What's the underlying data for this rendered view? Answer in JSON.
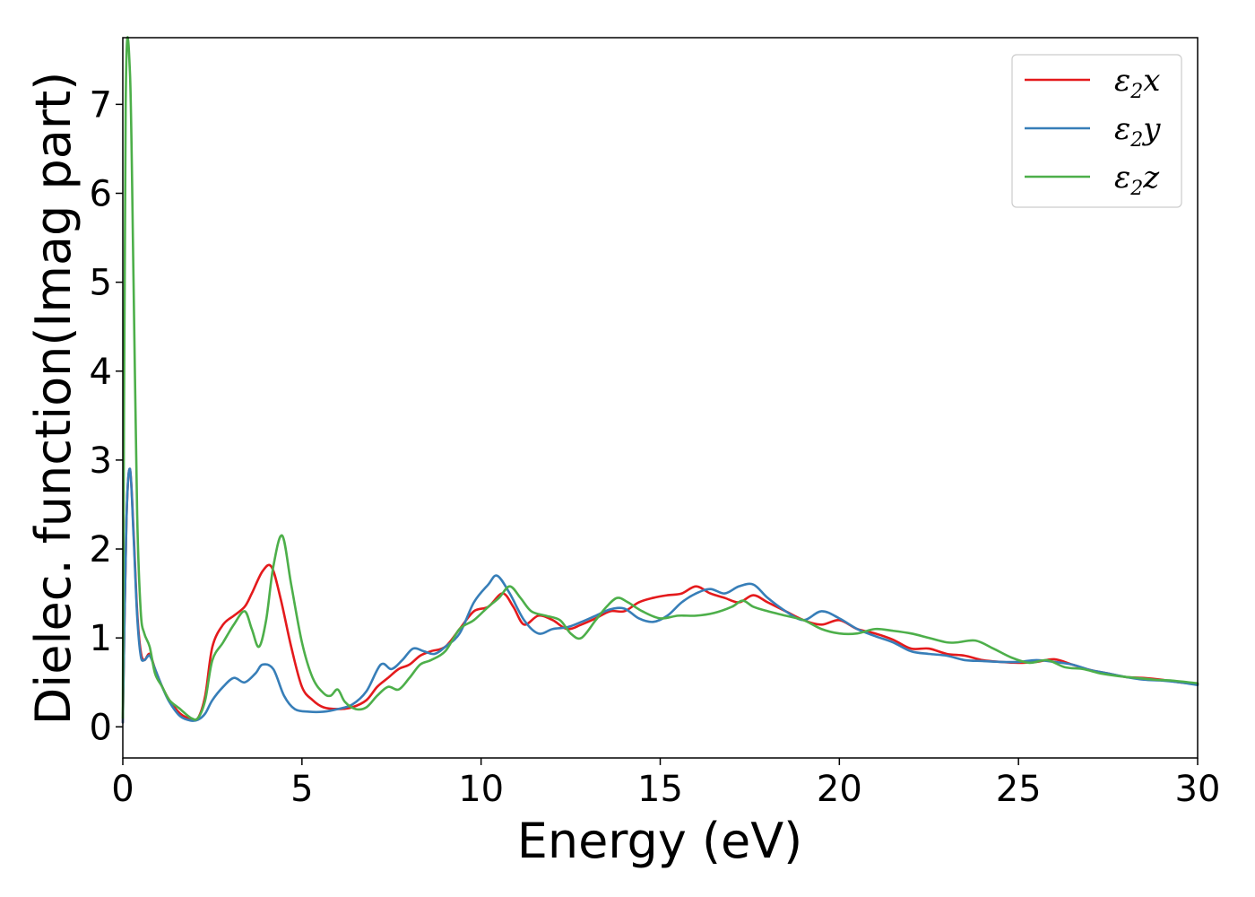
{
  "chart_data": {
    "type": "line",
    "xlabel": "Energy (eV)",
    "ylabel": "Dielec. function(Imag part)",
    "xlim": [
      0,
      30
    ],
    "ylim": [
      -0.35,
      7.75
    ],
    "xticks": [
      0,
      5,
      10,
      15,
      20,
      25,
      30
    ],
    "xtick_labels": [
      "0",
      "5",
      "10",
      "15",
      "20",
      "25",
      "30"
    ],
    "yticks": [
      0,
      1,
      2,
      3,
      4,
      5,
      6,
      7
    ],
    "ytick_labels": [
      "0",
      "1",
      "2",
      "3",
      "4",
      "5",
      "6",
      "7"
    ],
    "grid": false,
    "legend_position": "top-right",
    "series": [
      {
        "name": "ε2x",
        "legend": {
          "base": "ε",
          "sub": "2",
          "suffix": "x"
        },
        "color": "#e41a1c",
        "x": [
          0,
          0.1,
          0.2,
          0.3,
          0.4,
          0.5,
          0.6,
          0.75,
          0.9,
          1.1,
          1.3,
          1.6,
          1.9,
          2.1,
          2.3,
          2.5,
          2.8,
          3.1,
          3.4,
          3.6,
          3.9,
          4.15,
          4.4,
          4.7,
          5.0,
          5.3,
          5.6,
          6.0,
          6.4,
          6.8,
          7.1,
          7.4,
          7.7,
          8.0,
          8.3,
          8.6,
          9.0,
          9.4,
          9.8,
          10.2,
          10.6,
          10.9,
          11.2,
          11.6,
          12.0,
          12.4,
          12.8,
          13.2,
          13.6,
          14.0,
          14.4,
          14.8,
          15.2,
          15.6,
          16.0,
          16.4,
          16.8,
          17.2,
          17.6,
          18.0,
          18.5,
          19.0,
          19.5,
          20.0,
          20.5,
          21.0,
          21.5,
          22.0,
          22.5,
          23.0,
          23.5,
          24.0,
          24.5,
          25.0,
          25.5,
          26.0,
          26.5,
          27.0,
          27.5,
          28.0,
          28.5,
          29.0,
          29.5,
          30.0
        ],
        "values": [
          0.05,
          2.3,
          2.9,
          2.2,
          1.3,
          0.85,
          0.75,
          0.82,
          0.65,
          0.45,
          0.3,
          0.15,
          0.09,
          0.1,
          0.35,
          0.9,
          1.15,
          1.25,
          1.35,
          1.5,
          1.75,
          1.8,
          1.45,
          0.9,
          0.45,
          0.3,
          0.22,
          0.2,
          0.22,
          0.3,
          0.45,
          0.55,
          0.65,
          0.7,
          0.8,
          0.85,
          0.9,
          1.1,
          1.3,
          1.35,
          1.5,
          1.35,
          1.15,
          1.25,
          1.2,
          1.1,
          1.15,
          1.22,
          1.3,
          1.3,
          1.4,
          1.45,
          1.48,
          1.5,
          1.58,
          1.5,
          1.45,
          1.4,
          1.48,
          1.4,
          1.3,
          1.2,
          1.15,
          1.2,
          1.1,
          1.05,
          0.98,
          0.88,
          0.88,
          0.82,
          0.8,
          0.75,
          0.73,
          0.72,
          0.73,
          0.76,
          0.7,
          0.64,
          0.6,
          0.56,
          0.55,
          0.53,
          0.5,
          0.48
        ]
      },
      {
        "name": "ε2y",
        "legend": {
          "base": "ε",
          "sub": "2",
          "suffix": "y"
        },
        "color": "#377eb8",
        "x": [
          0,
          0.1,
          0.2,
          0.3,
          0.4,
          0.5,
          0.6,
          0.75,
          0.9,
          1.1,
          1.3,
          1.6,
          1.9,
          2.1,
          2.3,
          2.5,
          2.8,
          3.1,
          3.4,
          3.7,
          3.9,
          4.2,
          4.5,
          4.8,
          5.2,
          5.6,
          6.0,
          6.4,
          6.8,
          7.2,
          7.5,
          7.8,
          8.1,
          8.4,
          8.7,
          9.0,
          9.4,
          9.8,
          10.2,
          10.45,
          10.8,
          11.2,
          11.6,
          12.0,
          12.4,
          12.8,
          13.2,
          13.6,
          14.0,
          14.4,
          14.8,
          15.2,
          15.6,
          16.0,
          16.4,
          16.8,
          17.2,
          17.6,
          18.0,
          18.5,
          19.0,
          19.5,
          20.0,
          20.5,
          21.0,
          21.5,
          22.0,
          22.5,
          23.0,
          23.5,
          24.0,
          24.5,
          25.0,
          25.5,
          26.0,
          26.5,
          27.0,
          27.5,
          28.0,
          28.5,
          29.0,
          29.5,
          30.0
        ],
        "values": [
          0.05,
          2.3,
          2.9,
          2.15,
          1.25,
          0.8,
          0.75,
          0.8,
          0.65,
          0.45,
          0.28,
          0.12,
          0.07,
          0.08,
          0.15,
          0.3,
          0.45,
          0.55,
          0.5,
          0.6,
          0.7,
          0.65,
          0.35,
          0.2,
          0.17,
          0.17,
          0.2,
          0.25,
          0.4,
          0.7,
          0.65,
          0.75,
          0.88,
          0.85,
          0.82,
          0.9,
          1.05,
          1.4,
          1.6,
          1.7,
          1.5,
          1.2,
          1.05,
          1.1,
          1.12,
          1.18,
          1.25,
          1.32,
          1.33,
          1.22,
          1.18,
          1.25,
          1.4,
          1.5,
          1.55,
          1.5,
          1.58,
          1.6,
          1.45,
          1.3,
          1.2,
          1.3,
          1.22,
          1.1,
          1.02,
          0.95,
          0.85,
          0.82,
          0.8,
          0.75,
          0.74,
          0.73,
          0.73,
          0.75,
          0.73,
          0.7,
          0.64,
          0.6,
          0.56,
          0.53,
          0.52,
          0.5,
          0.47
        ]
      },
      {
        "name": "ε2z",
        "legend": {
          "base": "ε",
          "sub": "2",
          "suffix": "z"
        },
        "color": "#4daf4a",
        "x": [
          0,
          0.08,
          0.2,
          0.3,
          0.4,
          0.5,
          0.6,
          0.75,
          0.9,
          1.1,
          1.3,
          1.6,
          1.9,
          2.1,
          2.3,
          2.5,
          2.8,
          3.1,
          3.4,
          3.6,
          3.8,
          4.0,
          4.2,
          4.45,
          4.7,
          5.0,
          5.3,
          5.6,
          5.8,
          6.0,
          6.2,
          6.5,
          6.8,
          7.1,
          7.4,
          7.7,
          8.0,
          8.3,
          8.6,
          9.0,
          9.4,
          9.8,
          10.2,
          10.5,
          10.8,
          11.1,
          11.4,
          11.8,
          12.2,
          12.5,
          12.8,
          13.2,
          13.5,
          13.8,
          14.1,
          14.5,
          15.0,
          15.5,
          16.0,
          16.5,
          17.0,
          17.3,
          17.6,
          18.0,
          18.5,
          19.0,
          19.5,
          20.0,
          20.5,
          21.0,
          21.5,
          22.0,
          22.5,
          23.0,
          23.3,
          23.8,
          24.3,
          24.8,
          25.3,
          25.8,
          26.3,
          26.8,
          27.3,
          27.8,
          28.3,
          28.8,
          29.3,
          30.0
        ],
        "values": [
          0.1,
          7.0,
          7.35,
          5.0,
          2.4,
          1.3,
          1.05,
          0.9,
          0.6,
          0.45,
          0.3,
          0.2,
          0.1,
          0.1,
          0.3,
          0.75,
          0.95,
          1.15,
          1.3,
          1.1,
          0.9,
          1.2,
          1.8,
          2.15,
          1.6,
          0.95,
          0.55,
          0.38,
          0.35,
          0.42,
          0.28,
          0.2,
          0.22,
          0.35,
          0.45,
          0.42,
          0.55,
          0.7,
          0.75,
          0.85,
          1.1,
          1.2,
          1.35,
          1.45,
          1.58,
          1.45,
          1.3,
          1.25,
          1.2,
          1.05,
          1.0,
          1.2,
          1.35,
          1.45,
          1.4,
          1.3,
          1.22,
          1.25,
          1.25,
          1.28,
          1.35,
          1.42,
          1.35,
          1.3,
          1.25,
          1.2,
          1.1,
          1.05,
          1.05,
          1.1,
          1.08,
          1.05,
          1.0,
          0.95,
          0.95,
          0.97,
          0.88,
          0.78,
          0.72,
          0.75,
          0.67,
          0.65,
          0.6,
          0.57,
          0.55,
          0.53,
          0.52,
          0.49
        ]
      }
    ]
  }
}
